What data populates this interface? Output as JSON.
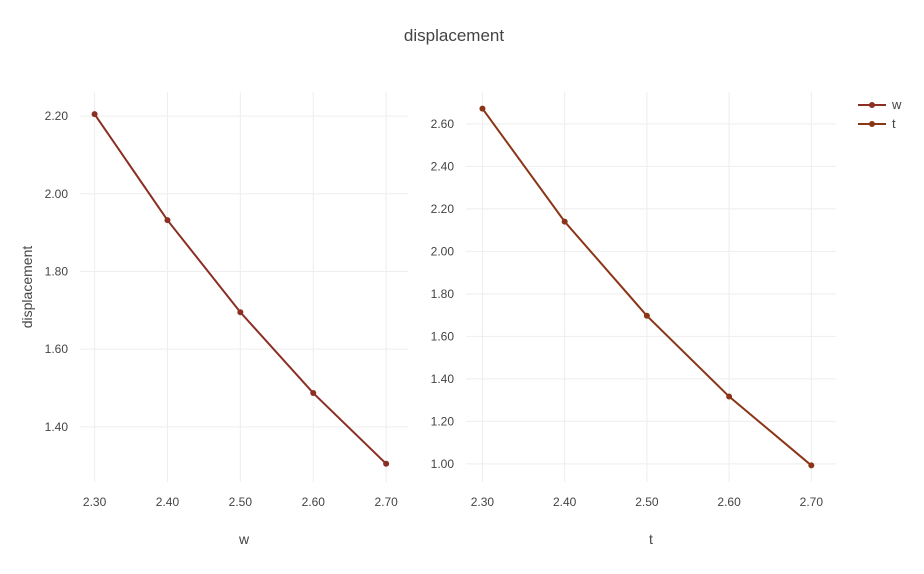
{
  "chart_data": {
    "title": "displacement",
    "legend": {
      "placement": "top-right",
      "entries": [
        "w",
        "t"
      ]
    },
    "grid": true,
    "panels": [
      {
        "type": "line",
        "series_name": "w",
        "color": "#8b2e24",
        "x": [
          2.3,
          2.4,
          2.5,
          2.6,
          2.7
        ],
        "y": [
          2.205,
          1.932,
          1.695,
          1.487,
          1.305
        ],
        "xlabel": "w",
        "ylabel": "displacement",
        "xlim": [
          2.28,
          2.73
        ],
        "ylim": [
          1.258,
          2.262
        ],
        "xticks": [
          "2.30",
          "2.40",
          "2.50",
          "2.60",
          "2.70"
        ],
        "yticks": [
          "1.40",
          "1.60",
          "1.80",
          "2.00",
          "2.20"
        ],
        "ytick_values": [
          1.4,
          1.6,
          1.8,
          2.0,
          2.2
        ]
      },
      {
        "type": "line",
        "series_name": "t",
        "color": "#8b3517",
        "x": [
          2.3,
          2.4,
          2.5,
          2.6,
          2.7
        ],
        "y": [
          2.672,
          2.14,
          1.697,
          1.317,
          0.993
        ],
        "xlabel": "t",
        "ylabel": "",
        "xlim": [
          2.28,
          2.73
        ],
        "ylim": [
          0.915,
          2.75
        ],
        "xticks": [
          "2.30",
          "2.40",
          "2.50",
          "2.60",
          "2.70"
        ],
        "yticks": [
          "1.00",
          "1.20",
          "1.40",
          "1.60",
          "1.80",
          "2.00",
          "2.20",
          "2.40",
          "2.60"
        ],
        "ytick_values": [
          1.0,
          1.2,
          1.4,
          1.6,
          1.8,
          2.0,
          2.2,
          2.4,
          2.6
        ]
      }
    ]
  }
}
